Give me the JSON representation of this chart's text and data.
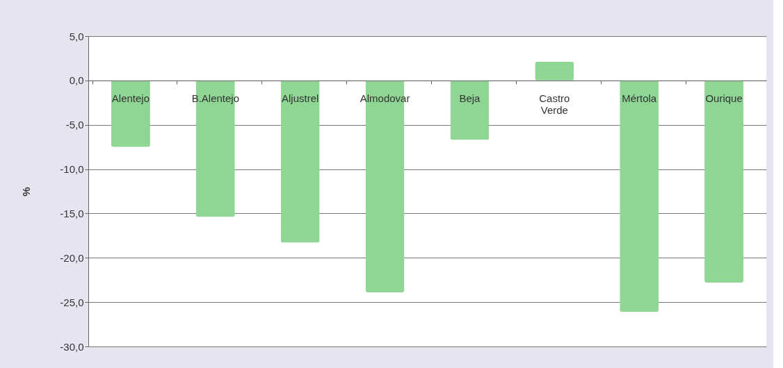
{
  "chart_data": {
    "type": "bar",
    "ylabel": "%",
    "categories": [
      "Alentejo",
      "B.Alentejo",
      "Aljustrel",
      "Almodovar",
      "Beja",
      "Castro Verde",
      "Mértola",
      "Ourique"
    ],
    "values": [
      -7.5,
      -15.4,
      -18.3,
      -23.9,
      -6.7,
      2.1,
      -26.1,
      -22.8
    ],
    "color": "#8fd694",
    "ylim": [
      -30,
      5
    ],
    "yticks": [
      {
        "value": -30,
        "label": "-30,0"
      },
      {
        "value": -25,
        "label": "-25,0"
      },
      {
        "value": -20,
        "label": "-20,0"
      },
      {
        "value": -15,
        "label": "-15,0"
      },
      {
        "value": -10,
        "label": "-10,0"
      },
      {
        "value": -5,
        "label": "-5,0"
      },
      {
        "value": 0,
        "label": "0,0"
      },
      {
        "value": 5,
        "label": "5,0"
      }
    ],
    "grid": "y"
  }
}
